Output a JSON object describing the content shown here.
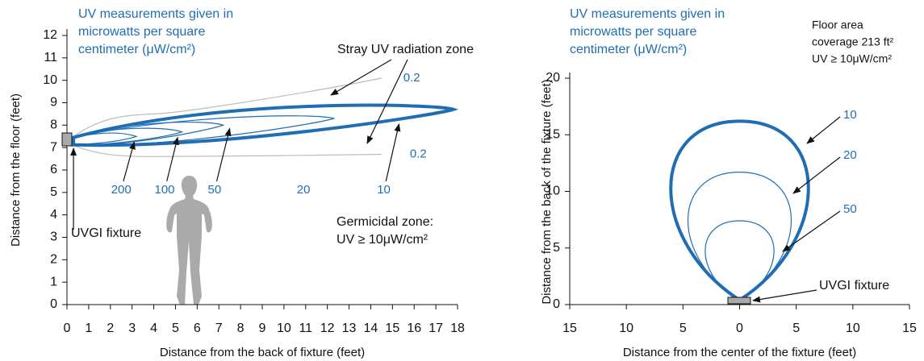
{
  "chart_data": [
    {
      "type": "contour",
      "xlabel": "Distance from the back of fixture (feet)",
      "ylabel": "Distance from the floor (feet)",
      "xlim": [
        0,
        18
      ],
      "xticks": [
        0,
        1,
        2,
        3,
        4,
        5,
        6,
        7,
        8,
        9,
        10,
        11,
        12,
        13,
        14,
        15,
        16,
        17,
        18
      ],
      "ylim": [
        0,
        12
      ],
      "yticks": [
        0,
        1,
        2,
        3,
        4,
        5,
        6,
        7,
        8,
        9,
        10,
        11,
        12
      ],
      "note": [
        "UV measurements given in",
        "microwatts per square",
        "centimeter (μW/cm²)"
      ],
      "stray_label": "Stray UV radiation zone",
      "fixture_label": "UVGI fixture",
      "germicidal": [
        "Germicidal zone:",
        "UV ≥ 10μW/cm²"
      ],
      "contours": [
        {
          "level": 0.2,
          "color": "#bbbbbb"
        },
        {
          "level": 10,
          "color": "#1f6db3"
        },
        {
          "level": 20,
          "color": "#1f6db3"
        },
        {
          "level": 50,
          "color": "#1f6db3"
        },
        {
          "level": 100,
          "color": "#1f6db3"
        },
        {
          "level": 200,
          "color": "#1f6db3"
        }
      ]
    },
    {
      "type": "contour",
      "xlabel": "Distance from the center of the fixture (feet)",
      "ylabel": "Distance from the back of the fixture (feet)",
      "xlim": [
        -15,
        15
      ],
      "xticks": [
        {
          "value": -15,
          "label": "15"
        },
        {
          "value": -10,
          "label": "10"
        },
        {
          "value": -5,
          "label": "5"
        },
        0,
        5,
        10,
        15
      ],
      "ylim": [
        0,
        20
      ],
      "yticks": [
        0,
        5,
        10,
        15,
        20
      ],
      "note": [
        "UV measurements given in",
        "microwatts per square",
        "centimeter (μW/cm²)"
      ],
      "coverage": [
        "Floor area",
        "coverage 213 ft²",
        "UV ≥ 10μW/cm²"
      ],
      "fixture_label": "UVGI fixture",
      "contours": [
        {
          "level": 10,
          "color": "#1f6db3"
        },
        {
          "level": 20,
          "color": "#1f6db3"
        },
        {
          "level": 50,
          "color": "#1f6db3"
        }
      ]
    }
  ]
}
